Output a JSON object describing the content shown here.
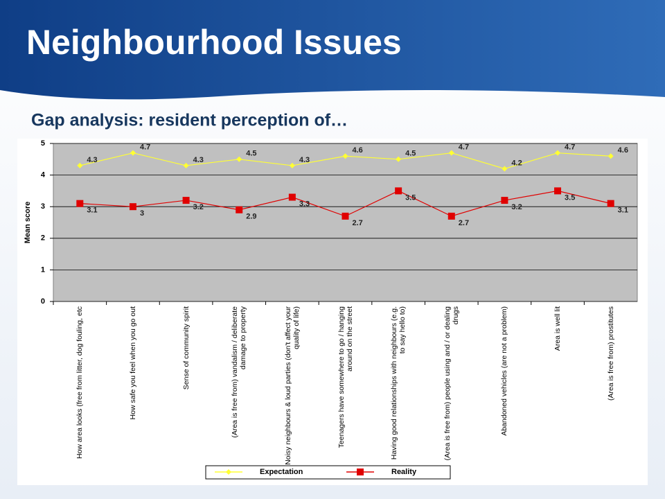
{
  "header": {
    "title": "Neighbourhood Issues",
    "subtitle": "Gap analysis: resident perception of…"
  },
  "chart_data": {
    "type": "line",
    "ylabel": "Mean score",
    "categories": [
      "How area looks (free from litter, dog fouling, etc",
      "How safe you feel when you go out",
      "Sense of community spirit",
      "(Area is free from) vandalism / deliberate damage to property",
      "Noisy neighbours & loud parties (don't affect your quality of life)",
      "Teenagers have somewhere to go / hanging around on the street",
      "Having good relationships with neighbours (e.g. to say hello to)",
      "(Area is free from) people using and / or dealing drugs",
      "Abandoned vehicles (are not a problem)",
      "Area is well lit",
      "(Area is free from) prostitutes"
    ],
    "series": [
      {
        "name": "Expectation",
        "color": "#ffff33",
        "marker": "diamond",
        "values": [
          4.3,
          4.7,
          4.3,
          4.5,
          4.3,
          4.6,
          4.5,
          4.7,
          4.2,
          4.7,
          4.6
        ]
      },
      {
        "name": "Reality",
        "color": "#e00000",
        "marker": "square",
        "values": [
          3.1,
          3,
          3.2,
          2.9,
          3.3,
          2.7,
          3.5,
          2.7,
          3.2,
          3.5,
          3.1
        ]
      }
    ],
    "ylim": [
      0,
      5
    ],
    "yticks": [
      0,
      1,
      2,
      3,
      4,
      5
    ],
    "grid": true,
    "legend": "bottom"
  }
}
